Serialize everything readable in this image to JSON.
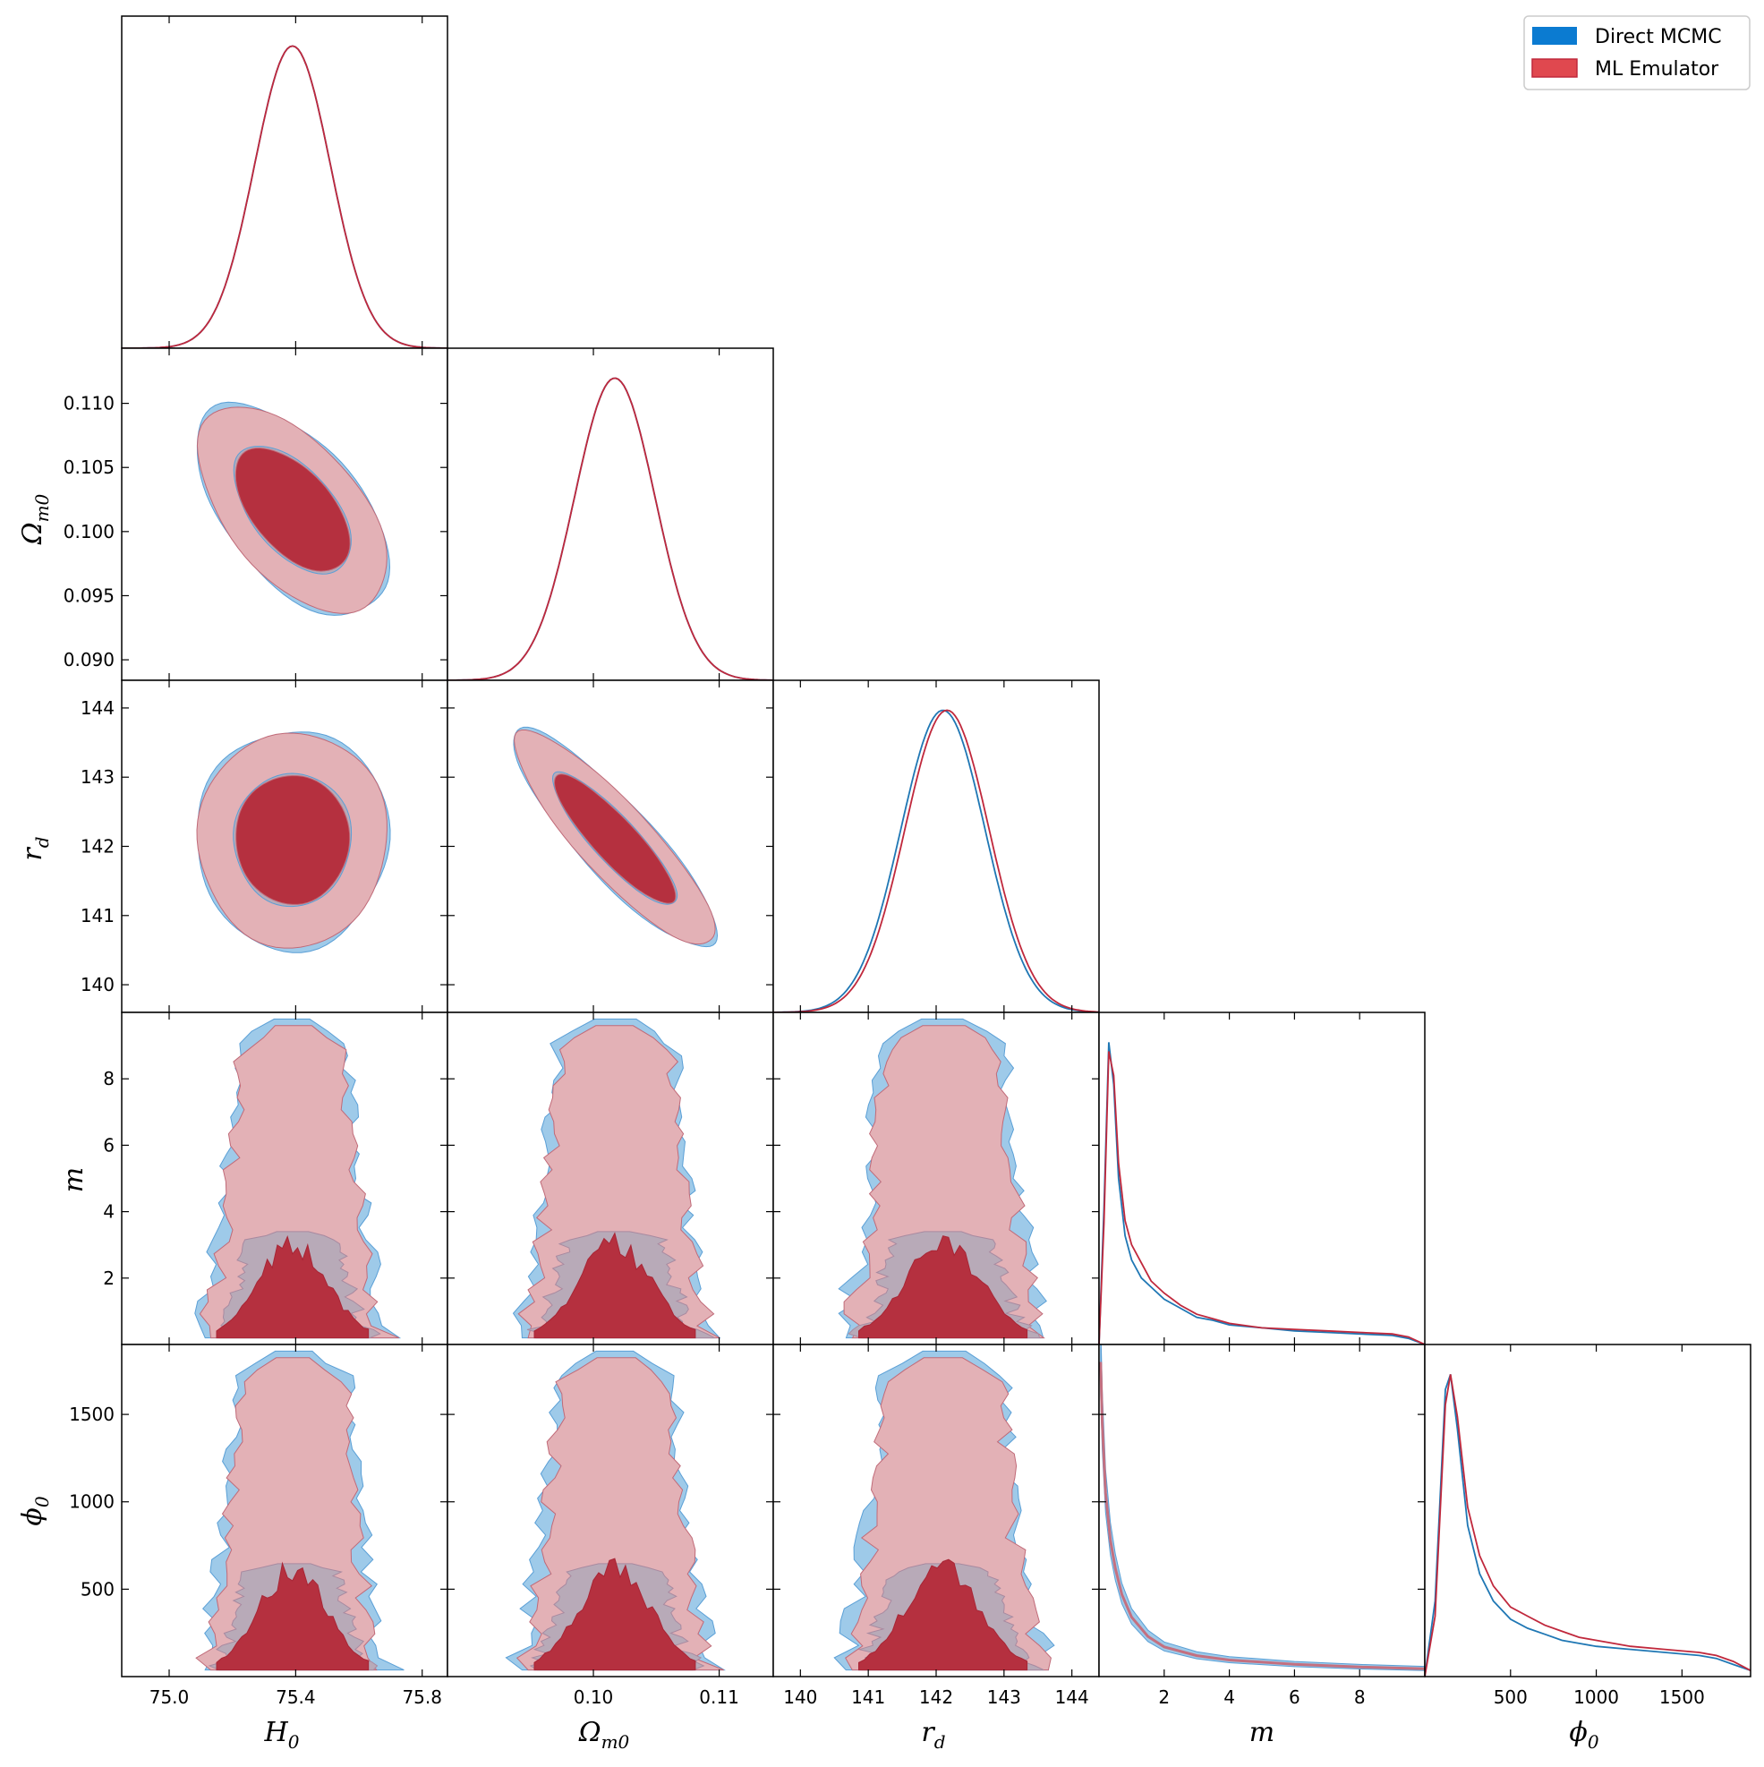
{
  "chart_data": {
    "type": "corner",
    "title": "",
    "params": [
      {
        "key": "H0",
        "symbol": "H",
        "sub": "0",
        "range": [
          74.85,
          75.88
        ],
        "ticks": [
          75.0,
          75.4,
          75.8
        ],
        "tick_labels": [
          "75.0",
          "75.4",
          "75.8"
        ],
        "mean": 75.39,
        "sigma": 0.12
      },
      {
        "key": "Om0",
        "symbol": "Ω",
        "sub": "m0",
        "range": [
          0.0884,
          0.1143
        ],
        "ticks": [
          0.09,
          0.095,
          0.1,
          0.105,
          0.11
        ],
        "tick_labels": [
          "0.090",
          "0.095",
          "0.100",
          "0.105",
          "0.110"
        ],
        "bottom_ticks": [
          0.1,
          0.11
        ],
        "bottom_tick_labels": [
          "0.10",
          "0.11"
        ],
        "mean": 0.1017,
        "sigma": 0.0032
      },
      {
        "key": "rd",
        "symbol": "r",
        "sub": "d",
        "range": [
          139.6,
          144.4
        ],
        "ticks": [
          140,
          141,
          142,
          143,
          144
        ],
        "tick_labels": [
          "140",
          "141",
          "142",
          "143",
          "144"
        ],
        "mean": 142.1,
        "sigma": 0.62
      },
      {
        "key": "m",
        "symbol": "m",
        "sub": "",
        "range": [
          0.0,
          10.0
        ],
        "ticks": [
          2,
          4,
          6,
          8
        ],
        "tick_labels": [
          "2",
          "4",
          "6",
          "8"
        ]
      },
      {
        "key": "phi0",
        "symbol": "ϕ",
        "sub": "0",
        "range": [
          0,
          1900
        ],
        "ticks": [
          500,
          1000,
          1500
        ],
        "tick_labels": [
          "500",
          "1000",
          "1500"
        ]
      }
    ],
    "series": [
      {
        "name": "Direct MCMC",
        "color": "#1f77b4",
        "fill": "#0b7bd1",
        "offset": 0
      },
      {
        "name": "ML Emulator",
        "color": "#c0283c",
        "fill": "#e0484f",
        "offset": 1
      }
    ],
    "m_marginal": {
      "x": [
        0.0,
        0.15,
        0.3,
        0.45,
        0.6,
        0.8,
        1.0,
        1.3,
        1.6,
        2.0,
        2.5,
        3.0,
        3.5,
        4.0,
        5.0,
        6.0,
        7.0,
        8.0,
        9.0,
        9.5,
        10.0
      ],
      "y_mcmc": [
        0.0,
        0.45,
        1.0,
        0.86,
        0.55,
        0.36,
        0.28,
        0.22,
        0.19,
        0.15,
        0.12,
        0.09,
        0.08,
        0.065,
        0.055,
        0.045,
        0.04,
        0.035,
        0.03,
        0.02,
        0.0
      ],
      "y_emu": [
        0.0,
        0.4,
        0.97,
        0.89,
        0.6,
        0.41,
        0.33,
        0.27,
        0.21,
        0.17,
        0.13,
        0.1,
        0.085,
        0.07,
        0.055,
        0.05,
        0.045,
        0.04,
        0.035,
        0.025,
        0.0
      ]
    },
    "phi0_marginal": {
      "x": [
        0,
        60,
        120,
        150,
        190,
        250,
        320,
        400,
        500,
        600,
        700,
        800,
        900,
        1000,
        1200,
        1400,
        1600,
        1700,
        1800,
        1900
      ],
      "y_mcmc": [
        0.0,
        0.25,
        0.95,
        1.0,
        0.82,
        0.5,
        0.34,
        0.25,
        0.19,
        0.16,
        0.14,
        0.12,
        0.11,
        0.1,
        0.09,
        0.08,
        0.07,
        0.06,
        0.04,
        0.02
      ],
      "y_emu": [
        0.0,
        0.2,
        0.9,
        1.0,
        0.86,
        0.56,
        0.4,
        0.3,
        0.23,
        0.2,
        0.17,
        0.15,
        0.13,
        0.12,
        0.1,
        0.09,
        0.08,
        0.07,
        0.05,
        0.02
      ]
    },
    "m_phi0_relation": {
      "m": [
        0.05,
        0.1,
        0.2,
        0.35,
        0.5,
        0.7,
        1.0,
        1.5,
        2.0,
        3.0,
        4.0,
        6.0,
        8.0,
        10.0
      ],
      "phi0": [
        1800,
        1450,
        1050,
        780,
        620,
        470,
        340,
        230,
        170,
        120,
        95,
        70,
        55,
        45
      ]
    },
    "legend": {
      "position": "top-right",
      "entries": [
        "Direct MCMC",
        "ML Emulator"
      ]
    }
  }
}
